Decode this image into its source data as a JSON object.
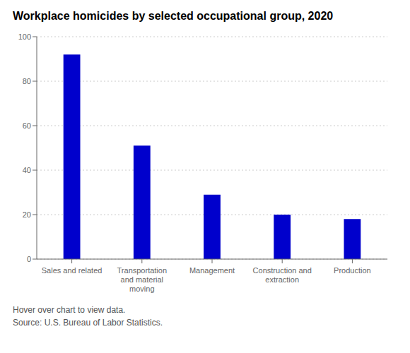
{
  "chart_data": {
    "type": "bar",
    "title": "Workplace homicides by selected occupational group, 2020",
    "categories": [
      "Sales and related",
      "Transportation\nand material\nmoving",
      "Management",
      "Construction and\nextraction",
      "Production"
    ],
    "values": [
      92,
      51,
      29,
      20,
      18
    ],
    "color": "#0000CC",
    "ylim": [
      0,
      100
    ],
    "yticks": [
      0,
      20,
      40,
      60,
      80,
      100
    ],
    "grid": true,
    "annotations": [
      "Hover over chart to view data.",
      "Source: U.S. Bureau of Labor Statistics."
    ]
  }
}
